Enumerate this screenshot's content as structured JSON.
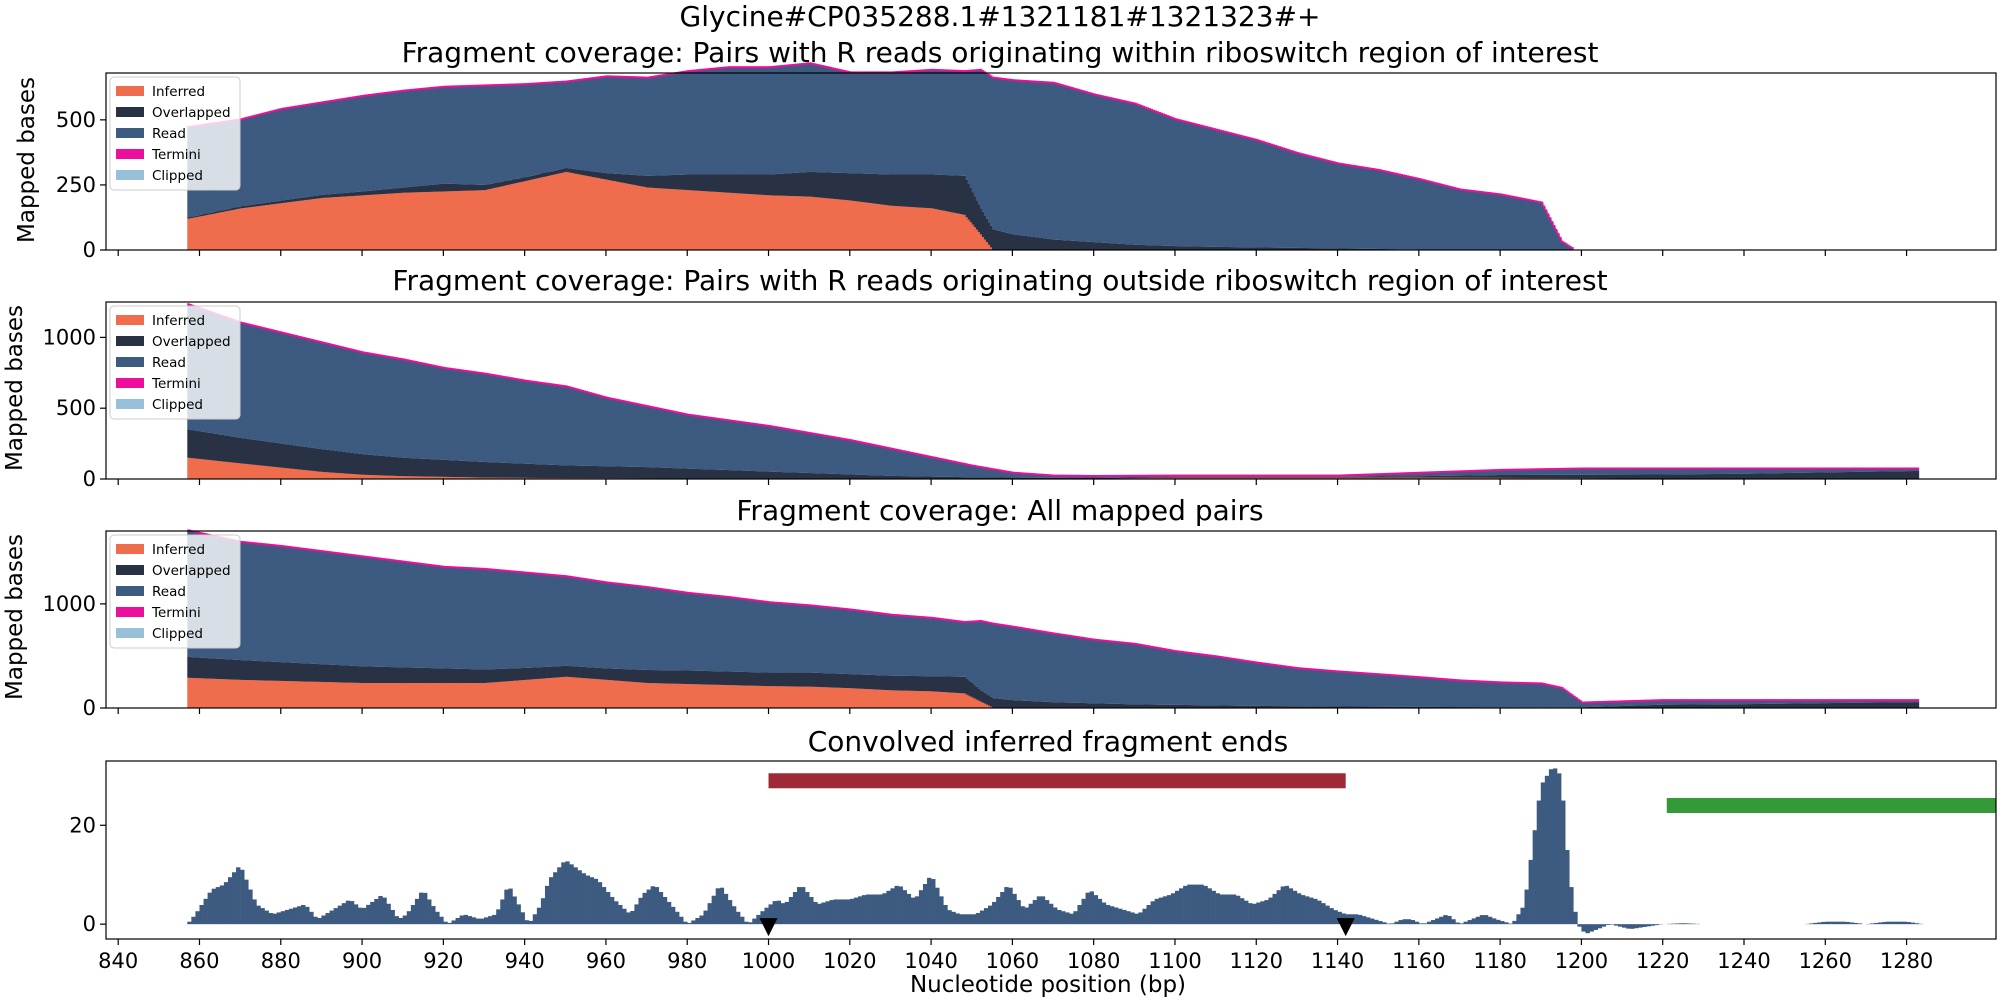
{
  "figure": {
    "suptitle": "Glycine#CP035288.1#1321181#1321323#+",
    "xlabel": "Nucleotide position (bp)",
    "x_ticks": [
      840,
      860,
      880,
      900,
      920,
      940,
      960,
      980,
      1000,
      1020,
      1040,
      1060,
      1080,
      1100,
      1120,
      1140,
      1160,
      1180,
      1200,
      1220,
      1240,
      1260,
      1280
    ],
    "xlim": [
      837,
      1302
    ]
  },
  "legend": {
    "placement": "upper-left",
    "entries": [
      {
        "label": "Inferred",
        "color": "#ef6c4c"
      },
      {
        "label": "Overlapped",
        "color": "#283244"
      },
      {
        "label": "Read",
        "color": "#3d5a80"
      },
      {
        "label": "Termini",
        "color": "#ec0f9b"
      },
      {
        "label": "Clipped",
        "color": "#98c1d9"
      }
    ]
  },
  "chart_data": [
    {
      "type": "area",
      "title": "Fragment coverage: Pairs with R reads originating within riboswitch region of interest",
      "ylabel": "Mapped bases",
      "ylim": [
        0,
        680
      ],
      "yticks": [
        0,
        250,
        500
      ],
      "stacked": true,
      "series_order": [
        "Inferred",
        "Overlapped",
        "Read"
      ],
      "x": [
        857,
        870,
        880,
        890,
        900,
        910,
        920,
        930,
        940,
        950,
        960,
        970,
        980,
        990,
        1000,
        1010,
        1020,
        1030,
        1040,
        1048,
        1052,
        1055,
        1060,
        1070,
        1080,
        1090,
        1100,
        1110,
        1120,
        1130,
        1140,
        1150,
        1160,
        1170,
        1180,
        1190,
        1195,
        1198
      ],
      "series": [
        {
          "name": "Inferred",
          "values": [
            120,
            160,
            180,
            200,
            210,
            220,
            225,
            230,
            265,
            300,
            270,
            240,
            230,
            220,
            210,
            205,
            190,
            170,
            160,
            135,
            60,
            0,
            0,
            0,
            0,
            0,
            0,
            0,
            0,
            0,
            0,
            0,
            0,
            0,
            0,
            0,
            0,
            0
          ]
        },
        {
          "name": "Overlapped",
          "values": [
            5,
            8,
            10,
            12,
            15,
            20,
            30,
            20,
            15,
            15,
            25,
            45,
            60,
            70,
            80,
            95,
            105,
            120,
            130,
            150,
            100,
            80,
            60,
            40,
            30,
            20,
            15,
            12,
            10,
            8,
            6,
            4,
            2,
            1,
            1,
            0,
            0,
            0
          ]
        },
        {
          "name": "Read",
          "values": [
            345,
            332,
            350,
            353,
            365,
            370,
            370,
            380,
            355,
            330,
            370,
            375,
            395,
            410,
            410,
            415,
            385,
            390,
            400,
            400,
            530,
            580,
            590,
            600,
            565,
            540,
            485,
            448,
            410,
            362,
            324,
            301,
            268,
            229,
            210,
            180,
            30,
            0
          ]
        }
      ],
      "termini_edge": true
    },
    {
      "type": "area",
      "title": "Fragment coverage: Pairs with R reads originating outside riboswitch region of interest",
      "ylabel": "Mapped bases",
      "ylim": [
        0,
        1250
      ],
      "yticks": [
        0,
        500,
        1000
      ],
      "stacked": true,
      "series_order": [
        "Inferred",
        "Overlapped",
        "Read"
      ],
      "x": [
        857,
        870,
        880,
        890,
        900,
        910,
        920,
        930,
        940,
        950,
        960,
        970,
        980,
        990,
        1000,
        1010,
        1020,
        1030,
        1040,
        1050,
        1060,
        1070,
        1080,
        1100,
        1120,
        1140,
        1160,
        1180,
        1200,
        1220,
        1240,
        1260,
        1283
      ],
      "series": [
        {
          "name": "Inferred",
          "values": [
            150,
            110,
            80,
            50,
            30,
            20,
            15,
            10,
            8,
            6,
            5,
            4,
            3,
            3,
            2,
            2,
            2,
            2,
            2,
            2,
            2,
            2,
            2,
            10,
            10,
            10,
            10,
            8,
            5,
            2,
            2,
            2,
            2
          ]
        },
        {
          "name": "Overlapped",
          "values": [
            200,
            180,
            170,
            160,
            145,
            130,
            120,
            110,
            100,
            90,
            85,
            80,
            70,
            60,
            50,
            40,
            30,
            20,
            15,
            10,
            8,
            6,
            5,
            5,
            5,
            5,
            10,
            20,
            25,
            30,
            35,
            45,
            55
          ]
        },
        {
          "name": "Read",
          "values": [
            880,
            810,
            780,
            750,
            715,
            690,
            645,
            620,
            582,
            554,
            480,
            426,
            377,
            347,
            318,
            278,
            238,
            188,
            133,
            78,
            30,
            12,
            10,
            5,
            5,
            5,
            20,
            32,
            40,
            38,
            33,
            23,
            13
          ]
        }
      ],
      "termini_edge": true
    },
    {
      "type": "area",
      "title": "Fragment coverage: All mapped pairs",
      "ylabel": "Mapped bases",
      "ylim": [
        0,
        1700
      ],
      "yticks": [
        0,
        1000
      ],
      "stacked": true,
      "series_order": [
        "Inferred",
        "Overlapped",
        "Read"
      ],
      "x": [
        857,
        870,
        880,
        890,
        900,
        910,
        920,
        930,
        940,
        950,
        960,
        970,
        980,
        990,
        1000,
        1010,
        1020,
        1030,
        1040,
        1048,
        1052,
        1055,
        1060,
        1070,
        1080,
        1090,
        1100,
        1110,
        1120,
        1130,
        1140,
        1150,
        1160,
        1170,
        1180,
        1190,
        1195,
        1200,
        1220,
        1240,
        1260,
        1283
      ],
      "series": [
        {
          "name": "Inferred",
          "values": [
            290,
            270,
            260,
            250,
            240,
            240,
            240,
            240,
            270,
            300,
            270,
            240,
            230,
            220,
            210,
            205,
            190,
            170,
            160,
            140,
            60,
            5,
            5,
            5,
            5,
            5,
            5,
            5,
            5,
            5,
            5,
            5,
            5,
            5,
            5,
            5,
            5,
            5,
            2,
            2,
            2,
            2
          ]
        },
        {
          "name": "Overlapped",
          "values": [
            200,
            190,
            180,
            170,
            160,
            150,
            140,
            130,
            115,
            105,
            110,
            125,
            130,
            130,
            130,
            135,
            135,
            140,
            145,
            160,
            110,
            90,
            70,
            50,
            40,
            30,
            25,
            20,
            15,
            12,
            10,
            8,
            6,
            4,
            3,
            2,
            2,
            2,
            30,
            35,
            45,
            55
          ]
        },
        {
          "name": "Read",
          "values": [
            1210,
            1130,
            1110,
            1080,
            1050,
            1010,
            970,
            960,
            910,
            855,
            820,
            790,
            740,
            710,
            670,
            640,
            615,
            580,
            555,
            520,
            660,
            710,
            700,
            655,
            605,
            575,
            510,
            465,
            410,
            360,
            330,
            305,
            279,
            250,
            232,
            223,
            180,
            40,
            38,
            33,
            23,
            13
          ]
        }
      ],
      "termini_edge": true
    },
    {
      "type": "bar",
      "title": "Convolved inferred fragment ends",
      "ylim": [
        -3,
        33
      ],
      "yticks": [
        0,
        20
      ],
      "x_start": 857,
      "x_end": 1284,
      "keypoints_x": [
        857,
        859,
        863,
        866,
        870,
        874,
        878,
        882,
        886,
        889,
        893,
        897,
        900,
        905,
        909,
        911,
        915,
        918,
        921,
        925,
        929,
        933,
        936,
        941,
        944,
        946,
        950,
        955,
        958,
        962,
        966,
        969,
        972,
        976,
        980,
        984,
        988,
        992,
        995,
        999,
        1002,
        1004,
        1008,
        1012,
        1016,
        1020,
        1024,
        1028,
        1032,
        1036,
        1040,
        1044,
        1047,
        1051,
        1055,
        1059,
        1063,
        1067,
        1071,
        1075,
        1079,
        1083,
        1087,
        1091,
        1095,
        1099,
        1103,
        1107,
        1111,
        1115,
        1119,
        1123,
        1127,
        1131,
        1135,
        1139,
        1142,
        1145,
        1149,
        1153,
        1156,
        1158,
        1161,
        1164,
        1167,
        1170,
        1173,
        1176,
        1179,
        1183,
        1186,
        1190,
        1193,
        1195,
        1197,
        1199,
        1201,
        1204,
        1207,
        1212,
        1216,
        1220,
        1225,
        1230,
        1235,
        1240,
        1245,
        1250,
        1255,
        1260,
        1265,
        1270,
        1275,
        1280,
        1284
      ],
      "keypoints_y": [
        0,
        2,
        7,
        8,
        12,
        4,
        2,
        3,
        4,
        1,
        3,
        5,
        3,
        6,
        1,
        2,
        7,
        3,
        0,
        2,
        1,
        2,
        8,
        0,
        4,
        9,
        13,
        10,
        9,
        5,
        2,
        6,
        8,
        4,
        0,
        2,
        8,
        3,
        0,
        3,
        5,
        4,
        8,
        4,
        5,
        5,
        6,
        6,
        8,
        5,
        10,
        3,
        2,
        2,
        4,
        8,
        3,
        6,
        3,
        2,
        7,
        4,
        3,
        2,
        5,
        6,
        8,
        8,
        6,
        6,
        4,
        5,
        8,
        6,
        5,
        3,
        2,
        2,
        1,
        0,
        1,
        1,
        0,
        1,
        2,
        0,
        1,
        2,
        1,
        0,
        4,
        28,
        32,
        30,
        10,
        0,
        -2,
        -1,
        0,
        -1,
        -0.5,
        0,
        0.2,
        0,
        0,
        0,
        0,
        0,
        0,
        0.5,
        0.5,
        0,
        0.5,
        0.5,
        0
      ],
      "ranges": [
        {
          "x_start": 1000,
          "x_end": 1142,
          "y": 29,
          "color": "#9e2a38"
        },
        {
          "x_start": 1221,
          "x_end": 1302,
          "y": 24,
          "color": "#339a37"
        }
      ],
      "markers_x": [
        1000,
        1142
      ]
    }
  ]
}
